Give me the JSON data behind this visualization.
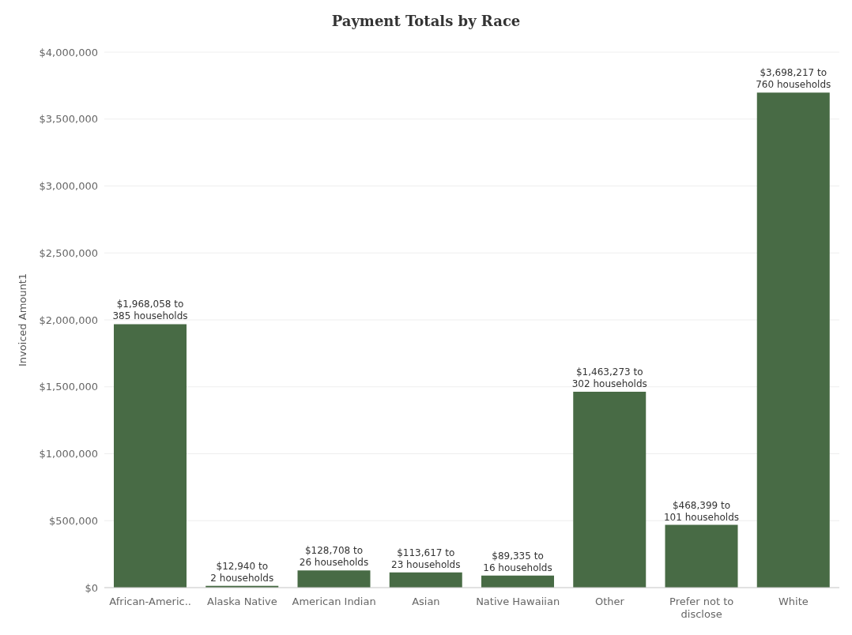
{
  "chart_data": {
    "type": "bar",
    "title": "Payment Totals by Race",
    "ylabel": "Invoiced Amount1",
    "categories": [
      "African-Americ..",
      "Alaska Native",
      "American Indian",
      "Asian",
      "Native Hawaiian",
      "Other",
      "Prefer not to disclose",
      "White"
    ],
    "values": [
      1968058,
      12940,
      128708,
      113617,
      89335,
      1463273,
      468399,
      3698217
    ],
    "value_labels": [
      "$1,968,058 to\n385 households",
      "$12,940 to\n2 households",
      "$128,708 to\n26 households",
      "$113,617 to\n23 households",
      "$89,335 to\n16 households",
      "$1,463,273 to\n302 households",
      "$468,399 to\n101 households",
      "$3,698,217 to\n760 households"
    ],
    "color": "#486b45",
    "ylim": [
      0,
      4000000
    ],
    "yticks": [
      {
        "value": 0,
        "label": "$0"
      },
      {
        "value": 500000,
        "label": "$500,000"
      },
      {
        "value": 1000000,
        "label": "$1,000,000"
      },
      {
        "value": 1500000,
        "label": "$1,500,000"
      },
      {
        "value": 2000000,
        "label": "$2,000,000"
      },
      {
        "value": 2500000,
        "label": "$2,500,000"
      },
      {
        "value": 3000000,
        "label": "$3,000,000"
      },
      {
        "value": 3500000,
        "label": "$3,500,000"
      },
      {
        "value": 4000000,
        "label": "$4,000,000"
      }
    ],
    "grid": "y"
  }
}
